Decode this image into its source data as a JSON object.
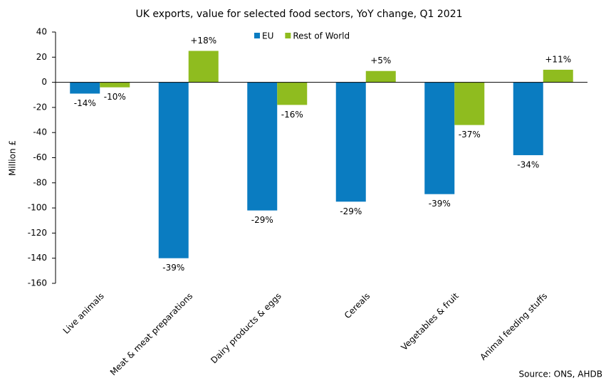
{
  "chart_data": {
    "type": "bar",
    "title": "UK exports, value for selected food sectors, YoY change, Q1 2021",
    "y_label": "Million £",
    "source": "Source: ONS, AHDB",
    "categories": [
      "Live animals",
      "Meat & meat preparations",
      "Dairy products & eggs",
      "Cereals",
      "Vegetables & fruit",
      "Animal feeding stuffs"
    ],
    "series": [
      {
        "name": "EU",
        "color": "#0a7cc1",
        "values": [
          -9,
          -140,
          -102,
          -95,
          -89,
          -58
        ],
        "labels": [
          "-14%",
          "-39%",
          "-29%",
          "-29%",
          "-39%",
          "-34%"
        ]
      },
      {
        "name": "Rest of World",
        "color": "#8fbc1f",
        "values": [
          -4,
          25,
          -18,
          9,
          -34,
          10
        ],
        "labels": [
          "-10%",
          "+18%",
          "-16%",
          "+5%",
          "-37%",
          "+11%"
        ]
      }
    ],
    "ylim": [
      -160,
      40
    ],
    "yticks": [
      -160,
      -140,
      -120,
      -100,
      -80,
      -60,
      -40,
      -20,
      0,
      20,
      40
    ],
    "legend": "top"
  }
}
